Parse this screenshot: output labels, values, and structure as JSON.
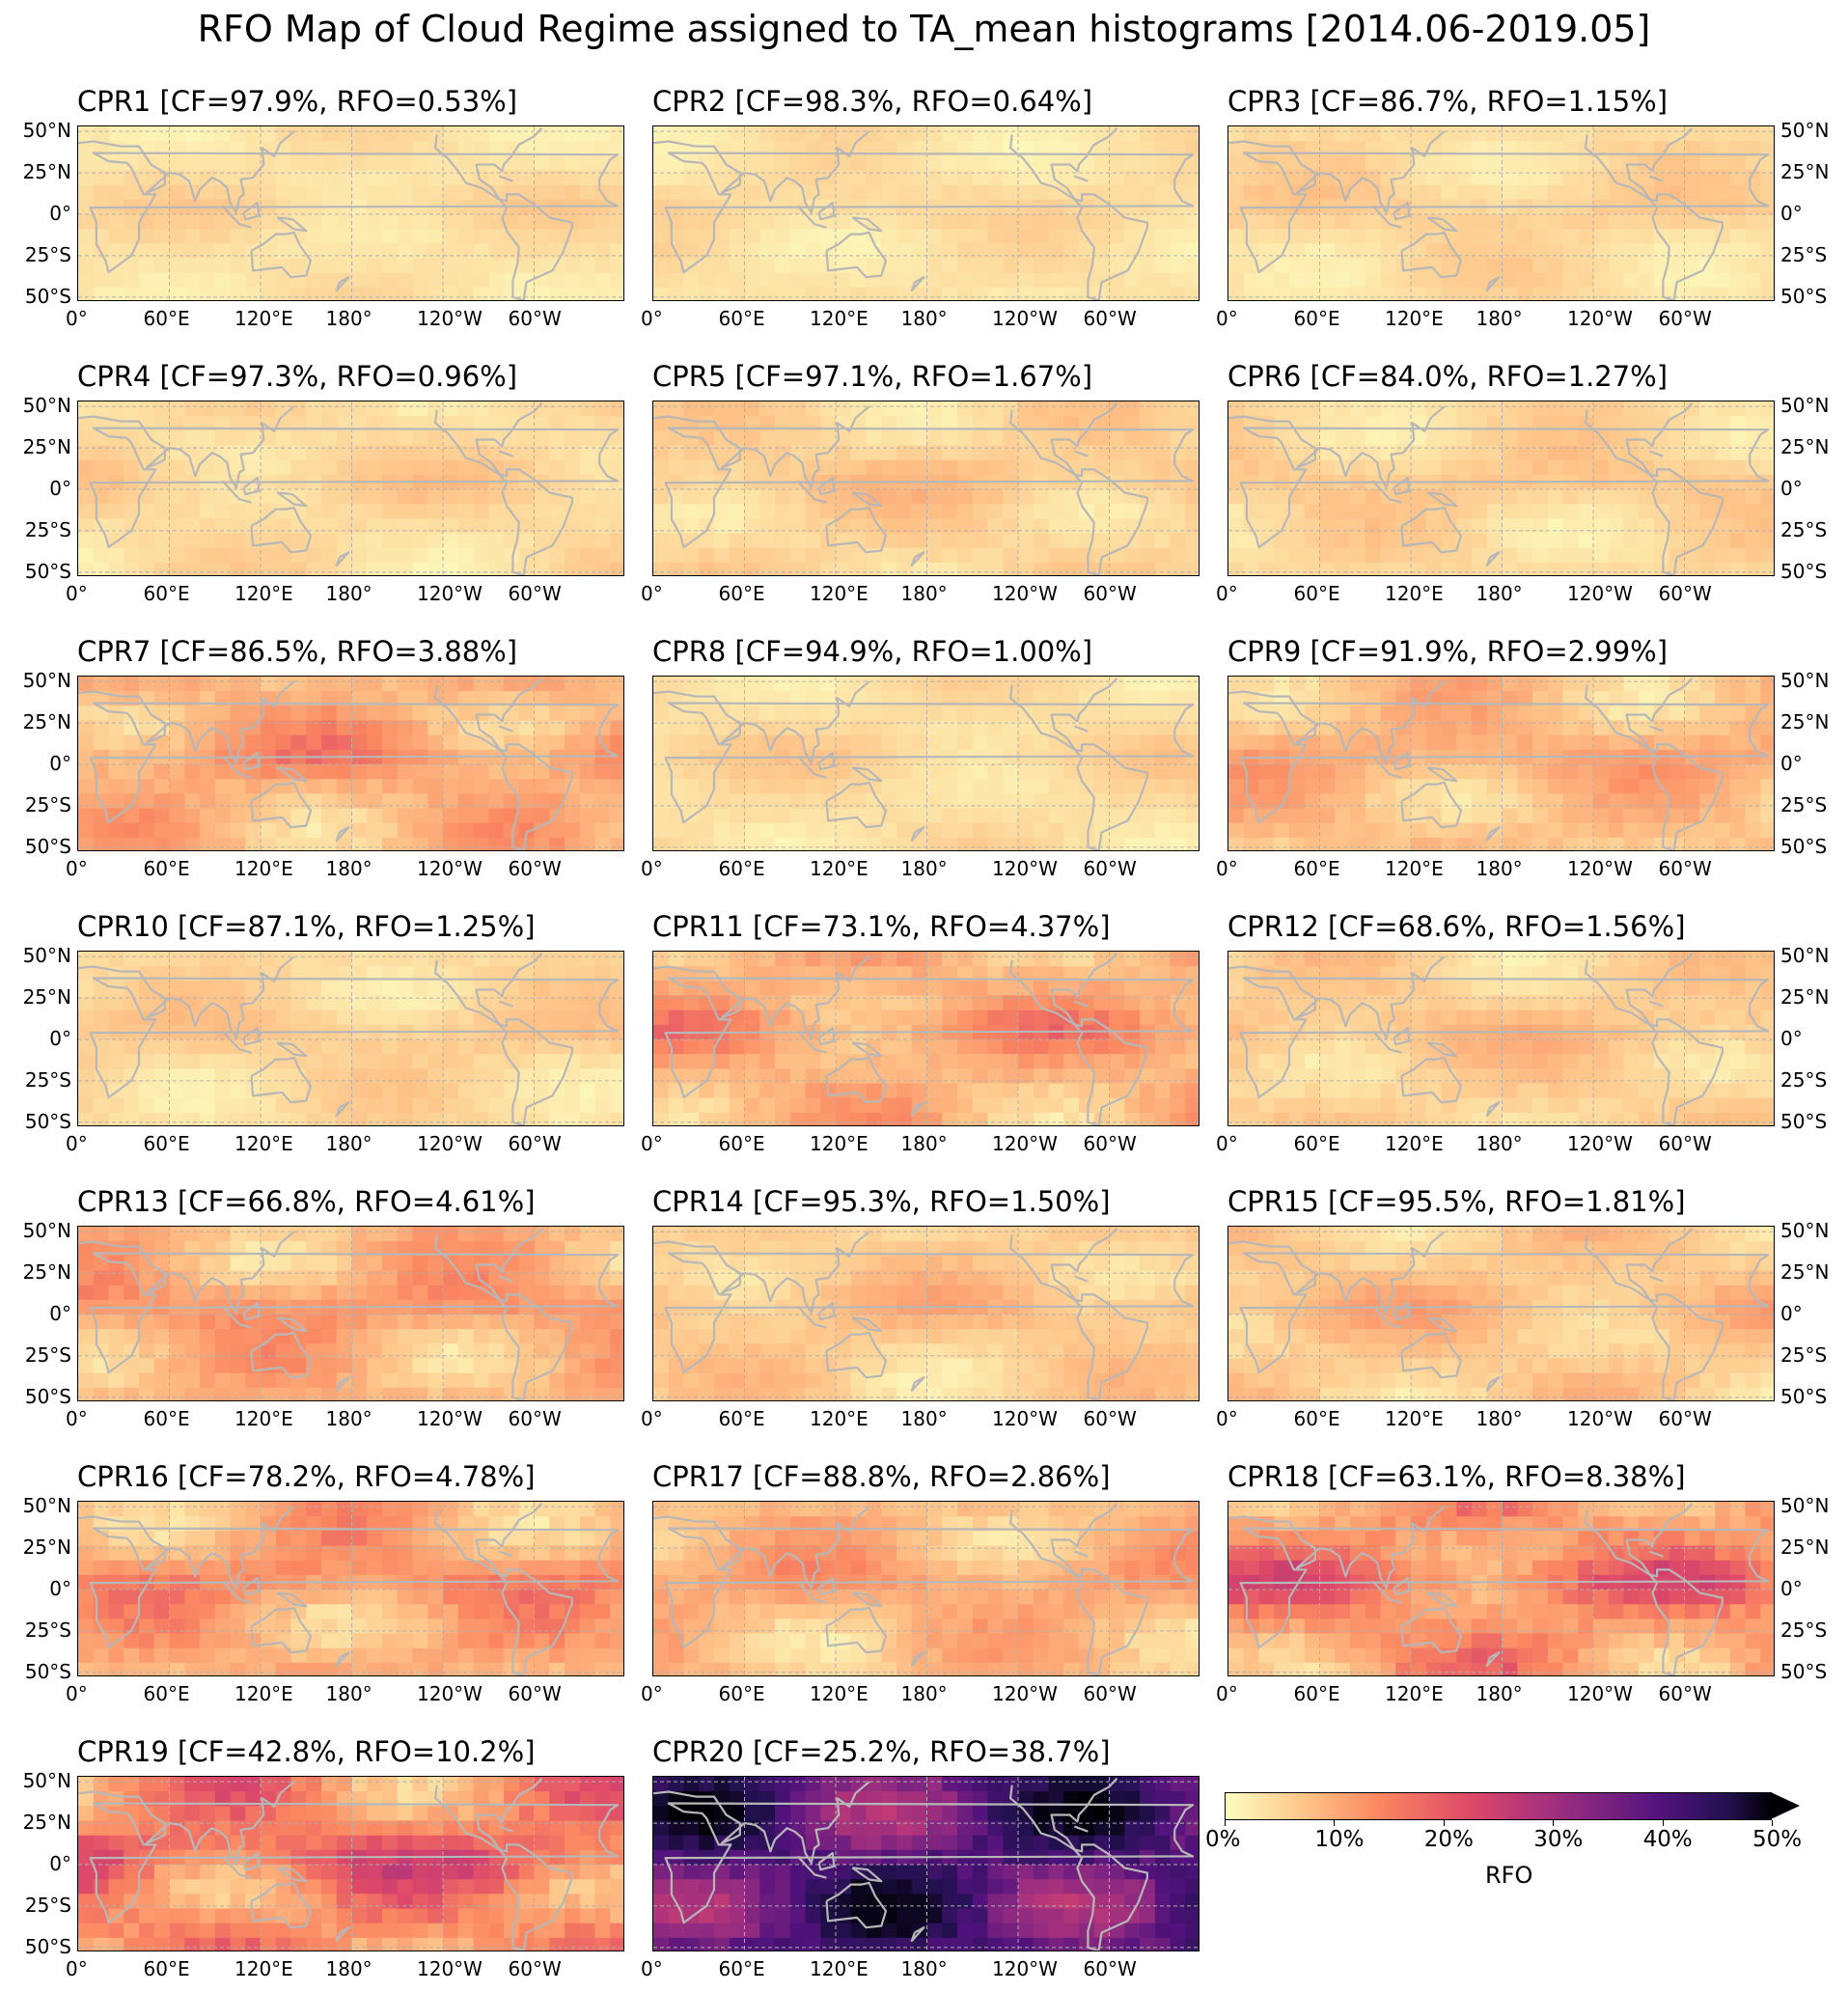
{
  "figure_title": "RFO Map of Cloud Regime assigned to TA_mean histograms [2014.06-2019.05]",
  "panels": [
    {
      "title": "CPR1 [CF=97.9%, RFO=0.53%]",
      "level": 0.08
    },
    {
      "title": "CPR2 [CF=98.3%, RFO=0.64%]",
      "level": 0.08
    },
    {
      "title": "CPR3 [CF=86.7%, RFO=1.15%]",
      "level": 0.1
    },
    {
      "title": "CPR4 [CF=97.3%, RFO=0.96%]",
      "level": 0.1
    },
    {
      "title": "CPR5 [CF=97.1%, RFO=1.67%]",
      "level": 0.12
    },
    {
      "title": "CPR6 [CF=84.0%, RFO=1.27%]",
      "level": 0.11
    },
    {
      "title": "CPR7 [CF=86.5%, RFO=3.88%]",
      "level": 0.22
    },
    {
      "title": "CPR8 [CF=94.9%, RFO=1.00%]",
      "level": 0.09
    },
    {
      "title": "CPR9 [CF=91.9%, RFO=2.99%]",
      "level": 0.18
    },
    {
      "title": "CPR10 [CF=87.1%, RFO=1.25%]",
      "level": 0.11
    },
    {
      "title": "CPR11 [CF=73.1%, RFO=4.37%]",
      "level": 0.22
    },
    {
      "title": "CPR12 [CF=68.6%, RFO=1.56%]",
      "level": 0.13
    },
    {
      "title": "CPR13 [CF=66.8%, RFO=4.61%]",
      "level": 0.22
    },
    {
      "title": "CPR14 [CF=95.3%, RFO=1.50%]",
      "level": 0.14
    },
    {
      "title": "CPR15 [CF=95.5%, RFO=1.81%]",
      "level": 0.15
    },
    {
      "title": "CPR16 [CF=78.2%, RFO=4.78%]",
      "level": 0.24
    },
    {
      "title": "CPR17 [CF=88.8%, RFO=2.86%]",
      "level": 0.2
    },
    {
      "title": "CPR18 [CF=63.1%, RFO=8.38%]",
      "level": 0.3
    },
    {
      "title": "CPR19 [CF=42.8%, RFO=10.2%]",
      "level": 0.34
    },
    {
      "title": "CPR20 [CF=25.2%, RFO=38.7%]",
      "level": 0.85
    }
  ],
  "lat_ticks": [
    "50°N",
    "25°N",
    "0°",
    "25°S",
    "50°S"
  ],
  "lon_ticks": [
    "0°",
    "60°E",
    "120°E",
    "180°",
    "120°W",
    "60°W"
  ],
  "colorbar": {
    "label": "RFO",
    "ticks": [
      "0%",
      "10%",
      "20%",
      "30%",
      "40%",
      "50%"
    ],
    "range": [
      0,
      50
    ],
    "colormap": "magma_r",
    "extend": "max"
  },
  "colors": {
    "land_outline": "#b7b7b7",
    "grid": "#b0b0b0",
    "cmap_stops": [
      "#fcfdbf",
      "#fec287",
      "#fb8761",
      "#de4968",
      "#b63679",
      "#8c2981",
      "#51127c",
      "#221150",
      "#000004"
    ]
  }
}
